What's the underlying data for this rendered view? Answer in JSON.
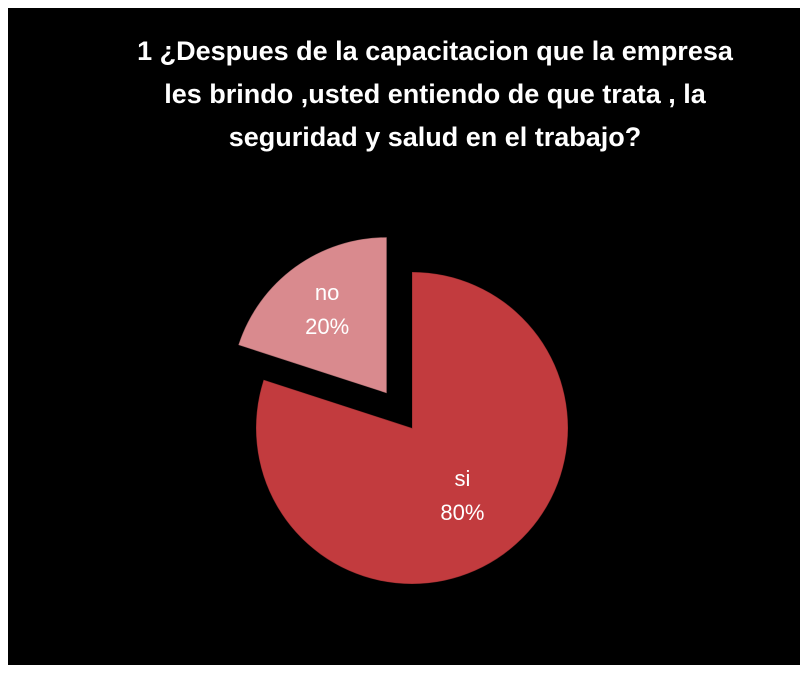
{
  "chart_data": {
    "type": "pie",
    "title": "1 ¿Despues de la capacitacion que la empresa les brindo ,usted entiendo de que trata , la seguridad y salud en el trabajo?",
    "categories": [
      "si",
      "no"
    ],
    "values": [
      80,
      20
    ],
    "value_labels": [
      "80%",
      "20%"
    ],
    "colors": [
      "#c23b3e",
      "#d98a8e"
    ],
    "exploded": [
      "no"
    ]
  }
}
